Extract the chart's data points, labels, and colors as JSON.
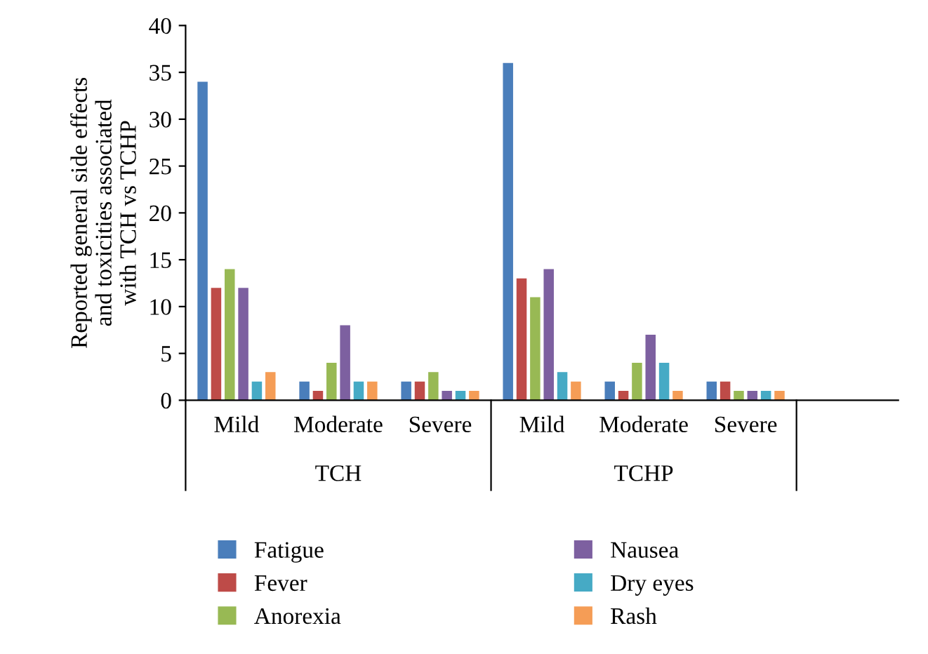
{
  "chart_data": {
    "type": "bar",
    "ylabel": "Reported general side effects\nand toxicities associated\nwith TCH vs TCHP",
    "categories": [
      "Mild",
      "Moderate",
      "Severe",
      "Mild",
      "Moderate",
      "Severe",
      null
    ],
    "series": [
      {
        "name": "Fatigue",
        "color": "#4a7ebb",
        "values": [
          34,
          2,
          2,
          36,
          2,
          2,
          null
        ]
      },
      {
        "name": "Fever",
        "color": "#be4b48",
        "values": [
          12,
          1,
          2,
          13,
          1,
          2,
          null
        ]
      },
      {
        "name": "Anorexia",
        "color": "#98b954",
        "values": [
          14,
          4,
          3,
          11,
          4,
          1,
          null
        ]
      },
      {
        "name": "Nausea",
        "color": "#7d60a0",
        "values": [
          12,
          8,
          1,
          14,
          7,
          1,
          null
        ]
      },
      {
        "name": "Dry eyes",
        "color": "#46aac5",
        "values": [
          2,
          2,
          1,
          3,
          4,
          1,
          null
        ]
      },
      {
        "name": "Rash",
        "color": "#f59d56",
        "values": [
          3,
          2,
          1,
          2,
          1,
          1,
          null
        ]
      }
    ],
    "annotations": [
      "TCH",
      "TCHP"
    ],
    "ylim": [
      0,
      40
    ],
    "yticks": [
      0,
      5,
      10,
      15,
      20,
      25,
      30,
      35,
      40
    ],
    "grid": false,
    "legend": "bottom"
  }
}
